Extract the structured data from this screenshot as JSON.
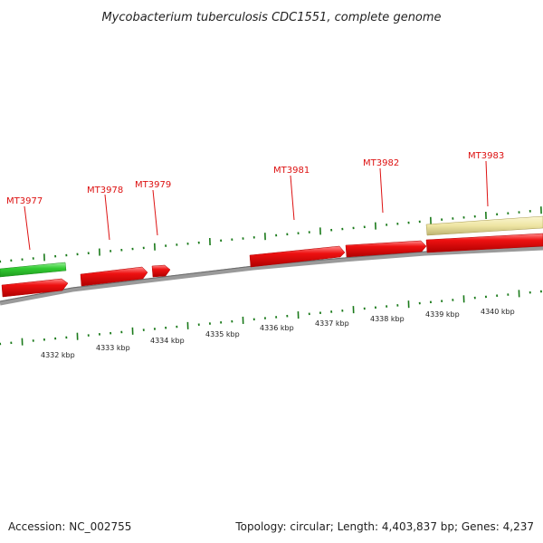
{
  "title": "Mycobacterium tuberculosis CDC1551, complete genome",
  "footer": {
    "accession": "Accession: NC_002755",
    "stats": "Topology: circular; Length: 4,403,837 bp; Genes: 4,237"
  },
  "scale": {
    "kbp_labels": [
      "4332 kbp",
      "4333 kbp",
      "4334 kbp",
      "4335 kbp",
      "4336 kbp",
      "4337 kbp",
      "4338 kbp",
      "4339 kbp",
      "4340 kbp"
    ]
  },
  "genes": [
    {
      "label": "MT3977"
    },
    {
      "label": "MT3978"
    },
    {
      "label": "MT3979"
    },
    {
      "label": "MT3981"
    },
    {
      "label": "MT3982"
    },
    {
      "label": "MT3983"
    }
  ],
  "colors": {
    "forward_red": "#ee1111",
    "reverse_red": "#ee1111",
    "green_feature": "#33cc33",
    "yellow_feature": "#eee5a3",
    "tick_green": "#1a7a1a",
    "backbone": "#888888",
    "label_red": "#dd1111"
  }
}
